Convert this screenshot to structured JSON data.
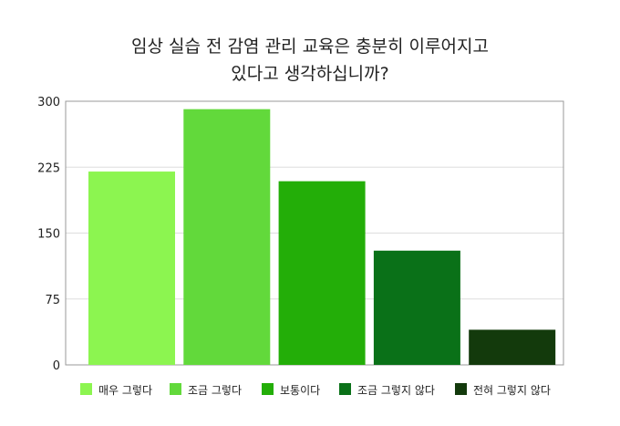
{
  "chart_data": {
    "type": "bar",
    "title_lines": [
      "임상 실습 전 감염 관리 교육은 충분히 이루어지고",
      "있다고 생각하십니까?"
    ],
    "categories": [
      "매우 그렇다",
      "조금 그렇다",
      "보통이다",
      "조금 그렇지 않다",
      "전혀 그렇지 않다"
    ],
    "values": [
      220,
      291,
      209,
      130,
      40
    ],
    "colors": [
      "#8cf550",
      "#62d93b",
      "#23ae08",
      "#0a7118",
      "#133a0c"
    ],
    "ylim": [
      0,
      300
    ],
    "yticks": [
      "0",
      "75",
      "150",
      "225",
      "300"
    ],
    "grid": true,
    "legend_position": "bottom"
  }
}
